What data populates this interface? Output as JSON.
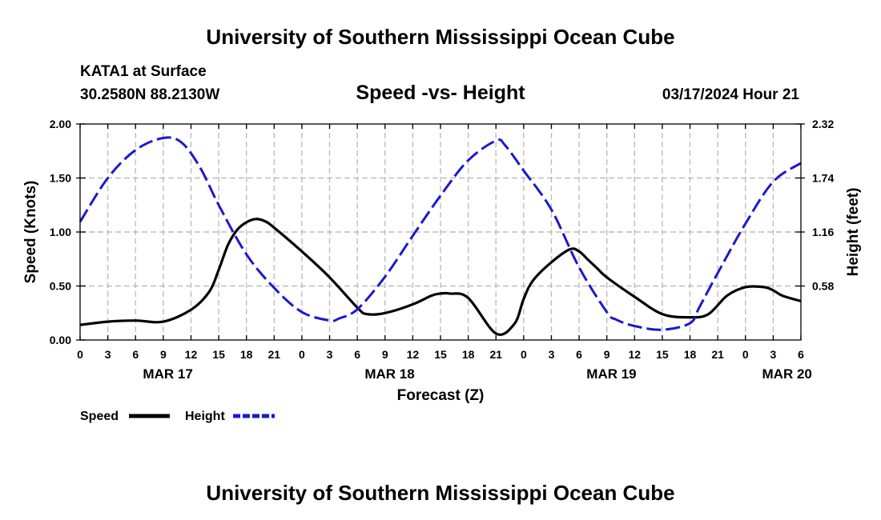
{
  "header": {
    "title_top": "University of Southern Mississippi Ocean Cube",
    "station": "KATA1 at Surface",
    "coords": "30.2580N  88.2130W",
    "datetime": "03/17/2024 Hour 21",
    "title_bottom": "University of Southern Mississippi Ocean Cube"
  },
  "colors": {
    "speed": "#000000",
    "height": "#1a1acc",
    "grid": "#bdbdbd"
  },
  "chart_data": {
    "type": "line",
    "title": "Speed -vs- Height",
    "xlabel": "Forecast (Z)",
    "ylabel": "Speed (Knots)",
    "y2label": "Height (feet)",
    "x_unit": "hours from MAR 17 00Z",
    "xlim": [
      0,
      78
    ],
    "x_ticks": [
      0,
      3,
      6,
      9,
      12,
      15,
      18,
      21,
      24,
      27,
      30,
      33,
      36,
      39,
      42,
      45,
      48,
      51,
      54,
      57,
      60,
      63,
      66,
      69,
      72,
      75,
      78
    ],
    "x_tick_labels": [
      "0",
      "3",
      "6",
      "9",
      "12",
      "15",
      "18",
      "21",
      "0",
      "3",
      "6",
      "9",
      "12",
      "15",
      "18",
      "21",
      "0",
      "3",
      "6",
      "9",
      "12",
      "15",
      "18",
      "21",
      "0",
      "3",
      "6"
    ],
    "date_labels": [
      {
        "x": 9.5,
        "label": "MAR 17"
      },
      {
        "x": 33.5,
        "label": "MAR 18"
      },
      {
        "x": 57.5,
        "label": "MAR 19"
      },
      {
        "x": 76.5,
        "label": "MAR 20"
      }
    ],
    "ylim": [
      0,
      2.0
    ],
    "y_ticks": [
      0,
      0.5,
      1.0,
      1.5,
      2.0
    ],
    "y_tick_labels": [
      "0.00",
      "0.50",
      "1.00",
      "1.50",
      "2.00"
    ],
    "y2lim": [
      0,
      2.32
    ],
    "y2_ticks": [
      0.58,
      1.16,
      1.74,
      2.32
    ],
    "y2_tick_labels": [
      "0.58",
      "1.16",
      "1.74",
      "2.32"
    ],
    "series": [
      {
        "name": "Speed",
        "axis": "left",
        "style": "solid",
        "x": [
          0,
          3,
          6,
          9,
          12,
          14,
          15,
          16,
          17,
          18,
          19,
          20,
          21,
          24,
          27,
          30,
          31,
          33,
          36,
          38,
          39,
          40,
          42,
          45,
          47,
          48,
          49,
          51,
          53,
          54,
          55,
          56,
          57,
          60,
          63,
          66,
          68,
          70,
          72,
          74,
          75,
          76,
          78
        ],
        "values": [
          0.14,
          0.17,
          0.18,
          0.17,
          0.28,
          0.45,
          0.65,
          0.88,
          1.02,
          1.09,
          1.12,
          1.1,
          1.04,
          0.82,
          0.58,
          0.3,
          0.24,
          0.25,
          0.33,
          0.41,
          0.43,
          0.43,
          0.39,
          0.06,
          0.15,
          0.38,
          0.55,
          0.72,
          0.84,
          0.82,
          0.74,
          0.66,
          0.58,
          0.4,
          0.24,
          0.21,
          0.24,
          0.41,
          0.49,
          0.49,
          0.46,
          0.41,
          0.36
        ]
      },
      {
        "name": "Height",
        "axis": "right",
        "style": "dashed",
        "x": [
          0,
          3,
          6,
          9,
          11,
          13,
          15,
          18,
          21,
          24,
          27,
          28,
          30,
          33,
          36,
          39,
          42,
          45,
          46,
          48,
          51,
          54,
          57,
          58,
          60,
          63,
          66,
          67,
          69,
          72,
          75,
          78
        ],
        "values": [
          1.27,
          1.74,
          2.04,
          2.17,
          2.12,
          1.85,
          1.45,
          0.92,
          0.56,
          0.3,
          0.21,
          0.23,
          0.33,
          0.68,
          1.12,
          1.55,
          1.93,
          2.14,
          2.09,
          1.82,
          1.4,
          0.78,
          0.3,
          0.22,
          0.15,
          0.11,
          0.18,
          0.35,
          0.72,
          1.25,
          1.7,
          1.9
        ]
      }
    ],
    "legend": [
      {
        "label": "Speed",
        "style": "solid"
      },
      {
        "label": "Height",
        "style": "dashed"
      }
    ]
  }
}
